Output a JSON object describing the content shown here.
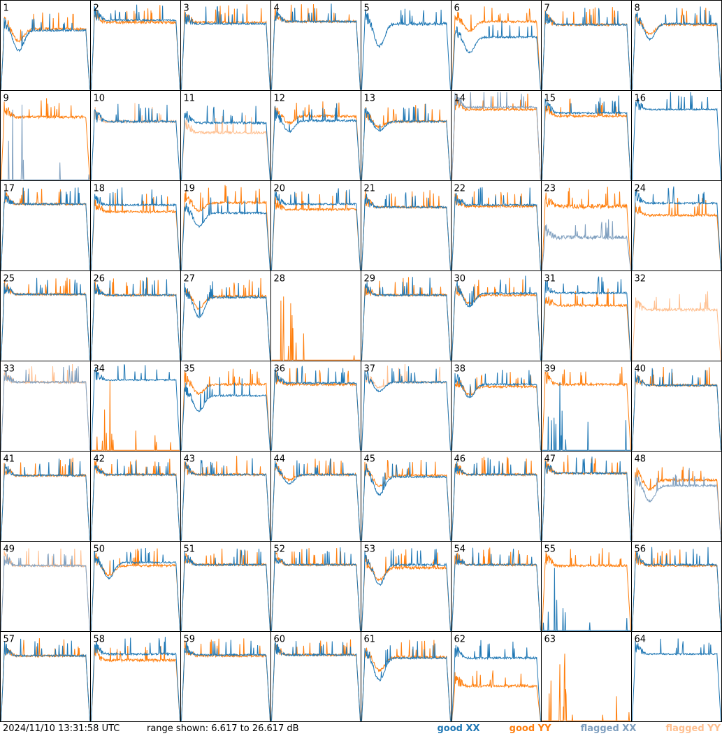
{
  "footer": {
    "timestamp": "2024/11/10 13:31:58 UTC",
    "range": "range shown: 6.617 to 26.617 dB"
  },
  "legend": [
    {
      "label": "good XX",
      "color": "#1f77b4"
    },
    {
      "label": "good YY",
      "color": "#ff7f0e"
    },
    {
      "label": "flagged XX",
      "color": "#7f9fbf"
    },
    {
      "label": "flagged YY",
      "color": "#ffbf8f"
    }
  ],
  "chart_data": {
    "type": "line",
    "layout": "small-multiples",
    "y_range_db": [
      6.617,
      26.617
    ],
    "series_types": [
      "good XX",
      "good YY",
      "flagged XX",
      "flagged YY"
    ],
    "panels": [
      {
        "id": "1",
        "xx": "good",
        "yy": "good",
        "xx_level": 20.0,
        "yy_level": 20.3,
        "dip": 0.45,
        "noise": 0.6
      },
      {
        "id": "2",
        "xx": "good",
        "yy": "good",
        "xx_level": 22.3,
        "yy_level": 21.8,
        "dip": 0,
        "noise": 0.5
      },
      {
        "id": "3",
        "xx": "good",
        "yy": "good",
        "xx_level": 21.5,
        "yy_level": 21.8,
        "dip": 0,
        "noise": 0.5
      },
      {
        "id": "4",
        "xx": "good",
        "yy": "good",
        "xx_level": 22.0,
        "yy_level": 22.0,
        "dip": 0,
        "noise": 0.5
      },
      {
        "id": "5",
        "xx": "good",
        "yy": "absent",
        "xx_level": 21.5,
        "yy_level": 0,
        "dip": 0.5,
        "noise": 0.9
      },
      {
        "id": "6",
        "xx": "good",
        "yy": "good",
        "xx_level": 18.5,
        "yy_level": 22.0,
        "dip": 0.35,
        "noise": 0.5
      },
      {
        "id": "7",
        "xx": "good",
        "yy": "good",
        "xx_level": 21.3,
        "yy_level": 21.3,
        "dip": 0,
        "noise": 0.5
      },
      {
        "id": "8",
        "xx": "good",
        "yy": "good",
        "xx_level": 21.5,
        "yy_level": 21.3,
        "dip": 0.35,
        "noise": 0.5
      },
      {
        "id": "9",
        "xx": "flagged",
        "yy": "good",
        "xx_level": 8.0,
        "yy_level": 20.8,
        "dip": 0,
        "noise": 0.6
      },
      {
        "id": "10",
        "xx": "good",
        "yy": "flagged",
        "xx_level": 19.8,
        "yy_level": 19.8,
        "dip": 0,
        "noise": 0.6
      },
      {
        "id": "11",
        "xx": "good",
        "yy": "flagged",
        "xx_level": 19.5,
        "yy_level": 17.3,
        "dip": 0,
        "noise": 0.6
      },
      {
        "id": "12",
        "xx": "good",
        "yy": "good",
        "xx_level": 20.0,
        "yy_level": 21.0,
        "dip": 0.25,
        "noise": 0.6
      },
      {
        "id": "13",
        "xx": "good",
        "yy": "good",
        "xx_level": 19.8,
        "yy_level": 19.8,
        "dip": 0.2,
        "noise": 0.5
      },
      {
        "id": "14",
        "xx": "flagged",
        "yy": "good",
        "xx_level": 23.0,
        "yy_level": 22.5,
        "dip": 0,
        "noise": 0.5
      },
      {
        "id": "15",
        "xx": "good",
        "yy": "good",
        "xx_level": 21.7,
        "yy_level": 21.0,
        "dip": 0,
        "noise": 0.5
      },
      {
        "id": "16",
        "xx": "good",
        "yy": "absent",
        "xx_level": 22.5,
        "yy_level": 0,
        "dip": 0,
        "noise": 0.4
      },
      {
        "id": "17",
        "xx": "good",
        "yy": "good",
        "xx_level": 21.5,
        "yy_level": 21.5,
        "dip": 0,
        "noise": 0.5
      },
      {
        "id": "18",
        "xx": "good",
        "yy": "good",
        "xx_level": 21.3,
        "yy_level": 19.8,
        "dip": 0,
        "noise": 0.5
      },
      {
        "id": "19",
        "xx": "good",
        "yy": "good",
        "xx_level": 19.5,
        "yy_level": 21.8,
        "dip": 0.3,
        "noise": 0.5
      },
      {
        "id": "20",
        "xx": "good",
        "yy": "good",
        "xx_level": 21.5,
        "yy_level": 20.3,
        "dip": 0,
        "noise": 0.5
      },
      {
        "id": "21",
        "xx": "good",
        "yy": "good",
        "xx_level": 20.8,
        "yy_level": 20.8,
        "dip": 0,
        "noise": 0.5
      },
      {
        "id": "22",
        "xx": "good",
        "yy": "good",
        "xx_level": 21.3,
        "yy_level": 21.0,
        "dip": 0,
        "noise": 0.5
      },
      {
        "id": "23",
        "xx": "flagged",
        "yy": "good",
        "xx_level": 14.0,
        "yy_level": 21.0,
        "dip": 0,
        "noise": 1.0
      },
      {
        "id": "24",
        "xx": "good",
        "yy": "good",
        "xx_level": 21.7,
        "yy_level": 19.0,
        "dip": 0,
        "noise": 0.5
      },
      {
        "id": "25",
        "xx": "good",
        "yy": "good",
        "xx_level": 21.5,
        "yy_level": 21.5,
        "dip": 0,
        "noise": 0.5
      },
      {
        "id": "26",
        "xx": "good",
        "yy": "good",
        "xx_level": 21.3,
        "yy_level": 21.3,
        "dip": 0,
        "noise": 0.5
      },
      {
        "id": "27",
        "xx": "good",
        "yy": "good",
        "xx_level": 20.8,
        "yy_level": 21.0,
        "dip": 0.45,
        "noise": 0.6
      },
      {
        "id": "28",
        "xx": "absent",
        "yy": "good",
        "xx_level": 0,
        "yy_level": 8.0,
        "dip": 0,
        "noise": 0.6
      },
      {
        "id": "29",
        "xx": "good",
        "yy": "good",
        "xx_level": 21.3,
        "yy_level": 21.3,
        "dip": 0,
        "noise": 0.5
      },
      {
        "id": "30",
        "xx": "good",
        "yy": "good",
        "xx_level": 21.7,
        "yy_level": 21.3,
        "dip": 0.3,
        "noise": 0.5
      },
      {
        "id": "31",
        "xx": "good",
        "yy": "good",
        "xx_level": 21.8,
        "yy_level": 19.0,
        "dip": 0,
        "noise": 0.5
      },
      {
        "id": "32",
        "xx": "absent",
        "yy": "flagged",
        "xx_level": 0,
        "yy_level": 18.0,
        "dip": 0,
        "noise": 0.6
      },
      {
        "id": "33",
        "xx": "flagged",
        "yy": "flagged",
        "xx_level": 22.0,
        "yy_level": 22.0,
        "dip": 0,
        "noise": 0.5
      },
      {
        "id": "34",
        "xx": "good",
        "yy": "good",
        "xx_level": 22.5,
        "yy_level": 8.0,
        "dip": 0,
        "noise": 0.4
      },
      {
        "id": "35",
        "xx": "good",
        "yy": "good",
        "xx_level": 19.0,
        "yy_level": 21.5,
        "dip": 0.35,
        "noise": 0.5
      },
      {
        "id": "36",
        "xx": "good",
        "yy": "good",
        "xx_level": 21.8,
        "yy_level": 21.5,
        "dip": 0,
        "noise": 0.5
      },
      {
        "id": "37",
        "xx": "good",
        "yy": "flagged",
        "xx_level": 22.0,
        "yy_level": 22.0,
        "dip": 0.2,
        "noise": 0.5
      },
      {
        "id": "38",
        "xx": "good",
        "yy": "good",
        "xx_level": 21.5,
        "yy_level": 21.0,
        "dip": 0.3,
        "noise": 0.5
      },
      {
        "id": "39",
        "xx": "good",
        "yy": "good",
        "xx_level": 8.0,
        "yy_level": 21.5,
        "dip": 0,
        "noise": 0.5
      },
      {
        "id": "40",
        "xx": "good",
        "yy": "good",
        "xx_level": 21.3,
        "yy_level": 21.3,
        "dip": 0,
        "noise": 0.5
      },
      {
        "id": "41",
        "xx": "good",
        "yy": "good",
        "xx_level": 21.3,
        "yy_level": 21.3,
        "dip": 0,
        "noise": 0.5
      },
      {
        "id": "42",
        "xx": "good",
        "yy": "good",
        "xx_level": 21.5,
        "yy_level": 21.5,
        "dip": 0,
        "noise": 0.5
      },
      {
        "id": "43",
        "xx": "good",
        "yy": "good",
        "xx_level": 21.5,
        "yy_level": 21.5,
        "dip": 0,
        "noise": 0.5
      },
      {
        "id": "44",
        "xx": "good",
        "yy": "good",
        "xx_level": 21.5,
        "yy_level": 21.5,
        "dip": 0.2,
        "noise": 0.5
      },
      {
        "id": "45",
        "xx": "good",
        "yy": "good",
        "xx_level": 21.0,
        "yy_level": 21.3,
        "dip": 0.4,
        "noise": 0.5
      },
      {
        "id": "46",
        "xx": "good",
        "yy": "good",
        "xx_level": 21.5,
        "yy_level": 21.5,
        "dip": 0,
        "noise": 0.5
      },
      {
        "id": "47",
        "xx": "good",
        "yy": "good",
        "xx_level": 21.8,
        "yy_level": 21.8,
        "dip": 0,
        "noise": 0.5
      },
      {
        "id": "48",
        "xx": "flagged",
        "yy": "good",
        "xx_level": 19.0,
        "yy_level": 20.3,
        "dip": 0.35,
        "noise": 0.6
      },
      {
        "id": "49",
        "xx": "flagged",
        "yy": "flagged",
        "xx_level": 21.3,
        "yy_level": 21.3,
        "dip": 0,
        "noise": 0.5
      },
      {
        "id": "50",
        "xx": "good",
        "yy": "good",
        "xx_level": 22.0,
        "yy_level": 21.3,
        "dip": 0.35,
        "noise": 0.5
      },
      {
        "id": "51",
        "xx": "good",
        "yy": "good",
        "xx_level": 21.5,
        "yy_level": 21.5,
        "dip": 0,
        "noise": 0.5
      },
      {
        "id": "52",
        "xx": "good",
        "yy": "good",
        "xx_level": 21.5,
        "yy_level": 21.5,
        "dip": 0,
        "noise": 0.5
      },
      {
        "id": "53",
        "xx": "good",
        "yy": "good",
        "xx_level": 21.5,
        "yy_level": 20.8,
        "dip": 0.45,
        "noise": 0.6
      },
      {
        "id": "54",
        "xx": "good",
        "yy": "good",
        "xx_level": 21.5,
        "yy_level": 21.5,
        "dip": 0,
        "noise": 0.5
      },
      {
        "id": "55",
        "xx": "good",
        "yy": "good",
        "xx_level": 8.0,
        "yy_level": 21.3,
        "dip": 0,
        "noise": 0.5
      },
      {
        "id": "56",
        "xx": "good",
        "yy": "good",
        "xx_level": 21.5,
        "yy_level": 21.3,
        "dip": 0,
        "noise": 0.5
      },
      {
        "id": "57",
        "xx": "good",
        "yy": "good",
        "xx_level": 21.3,
        "yy_level": 21.3,
        "dip": 0,
        "noise": 0.5
      },
      {
        "id": "58",
        "xx": "good",
        "yy": "good",
        "xx_level": 21.7,
        "yy_level": 20.3,
        "dip": 0,
        "noise": 0.6
      },
      {
        "id": "59",
        "xx": "good",
        "yy": "good",
        "xx_level": 21.5,
        "yy_level": 21.3,
        "dip": 0,
        "noise": 0.5
      },
      {
        "id": "60",
        "xx": "good",
        "yy": "good",
        "xx_level": 21.5,
        "yy_level": 21.5,
        "dip": 0,
        "noise": 0.5
      },
      {
        "id": "61",
        "xx": "good",
        "yy": "good",
        "xx_level": 20.8,
        "yy_level": 21.0,
        "dip": 0.5,
        "noise": 0.6
      },
      {
        "id": "62",
        "xx": "good",
        "yy": "good",
        "xx_level": 20.8,
        "yy_level": 14.5,
        "dip": 0,
        "noise": 0.6
      },
      {
        "id": "63",
        "xx": "absent",
        "yy": "good",
        "xx_level": 0,
        "yy_level": 8.0,
        "dip": 0,
        "noise": 0.6
      },
      {
        "id": "64",
        "xx": "good",
        "yy": "absent",
        "xx_level": 21.7,
        "yy_level": 0,
        "dip": 0,
        "noise": 0.4
      }
    ]
  }
}
